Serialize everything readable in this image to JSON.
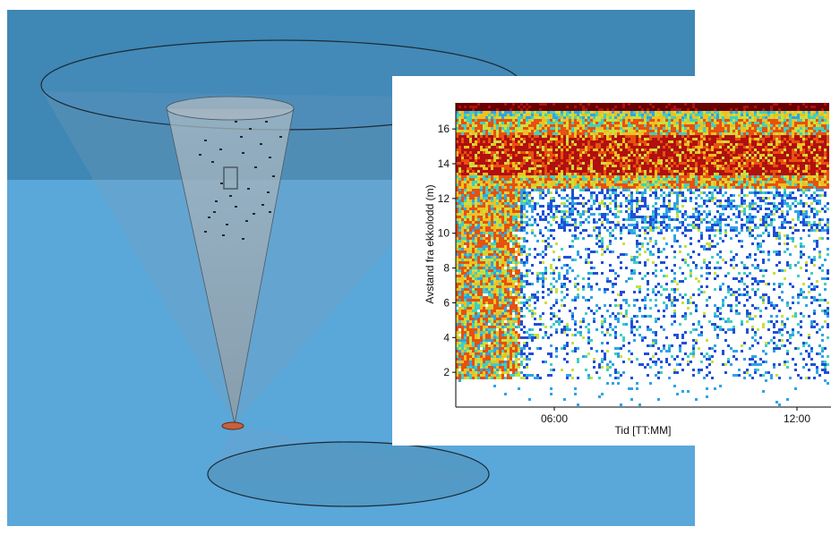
{
  "scene": {
    "description_icons": [
      "sonar-cone-icon",
      "echo-sounder-transducer-icon",
      "fish-school-icon"
    ],
    "colors": {
      "water_top": "#3f87b4",
      "water_bottom": "#5aa7da",
      "sonar_cone": "#8fa4b3",
      "transducer": "#c8603a"
    }
  },
  "chart_data": {
    "type": "heatmap",
    "title": "",
    "xlabel": "Tid [TT:MM]",
    "ylabel": "Avstand fra ekkolodd (m)",
    "x_ticks": [
      "06:00",
      "12:00"
    ],
    "y_ticks": [
      2,
      4,
      6,
      8,
      10,
      12,
      14,
      16
    ],
    "ylim": [
      0,
      17.5
    ],
    "surface_band_m": [
      17,
      17.5
    ],
    "high_backscatter_layer_m": [
      12.5,
      16.5
    ],
    "colormap": [
      "#ffffff",
      "#1f4fd8",
      "#2fa3e8",
      "#3fd0c0",
      "#c8e040",
      "#f0c020",
      "#e85010",
      "#b01010",
      "#6a0000"
    ],
    "grid": false,
    "legend": "none"
  }
}
